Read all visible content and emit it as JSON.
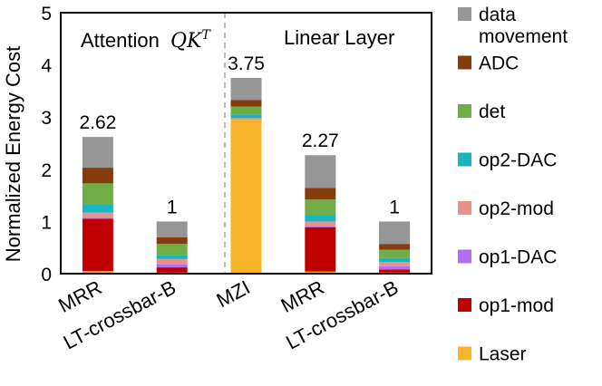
{
  "chart_data": {
    "type": "bar",
    "stacked": true,
    "ylabel": "Normalized Energy Cost",
    "ylim": [
      0,
      5
    ],
    "yticks": [
      "0",
      "1",
      "2",
      "3",
      "4",
      "5"
    ],
    "regions": [
      {
        "label": "Attention",
        "math": "QK",
        "sup": "T"
      },
      {
        "label": "Linear Layer"
      }
    ],
    "categories": [
      "MRR",
      "LT-crossbar-B",
      "MZI",
      "MRR",
      "LT-crossbar-B"
    ],
    "totals": [
      "2.62",
      "1",
      "3.75",
      "2.27",
      "1"
    ],
    "legend_order": [
      "data movement",
      "ADC",
      "det",
      "op2-DAC",
      "op2-mod",
      "op1-DAC",
      "op1-mod",
      "Laser"
    ],
    "legend_lines": [
      [
        "data",
        "movement"
      ],
      [
        "ADC"
      ],
      [
        "det"
      ],
      [
        "op2-DAC"
      ],
      [
        "op2-mod"
      ],
      [
        "op1-DAC"
      ],
      [
        "op1-mod"
      ],
      [
        "Laser"
      ]
    ],
    "series": [
      {
        "name": "Laser",
        "color": "#f9b529",
        "values": [
          0.05,
          0.02,
          2.95,
          0.04,
          0.02
        ]
      },
      {
        "name": "op1-mod",
        "color": "#c00000",
        "values": [
          1.0,
          0.1,
          0.0,
          0.85,
          0.06
        ]
      },
      {
        "name": "op1-DAC",
        "color": "#b36cf2",
        "values": [
          0.02,
          0.06,
          0.0,
          0.02,
          0.06
        ]
      },
      {
        "name": "op2-mod",
        "color": "#e8918d",
        "values": [
          0.1,
          0.1,
          0.03,
          0.09,
          0.08
        ]
      },
      {
        "name": "op2-DAC",
        "color": "#17b6c2",
        "values": [
          0.15,
          0.08,
          0.07,
          0.12,
          0.08
        ]
      },
      {
        "name": "det",
        "color": "#70ad47",
        "values": [
          0.41,
          0.21,
          0.15,
          0.3,
          0.16
        ]
      },
      {
        "name": "ADC",
        "color": "#843c0c",
        "values": [
          0.3,
          0.13,
          0.13,
          0.22,
          0.11
        ]
      },
      {
        "name": "data movement",
        "color": "#969696",
        "values": [
          0.59,
          0.3,
          0.42,
          0.63,
          0.43
        ]
      }
    ]
  }
}
